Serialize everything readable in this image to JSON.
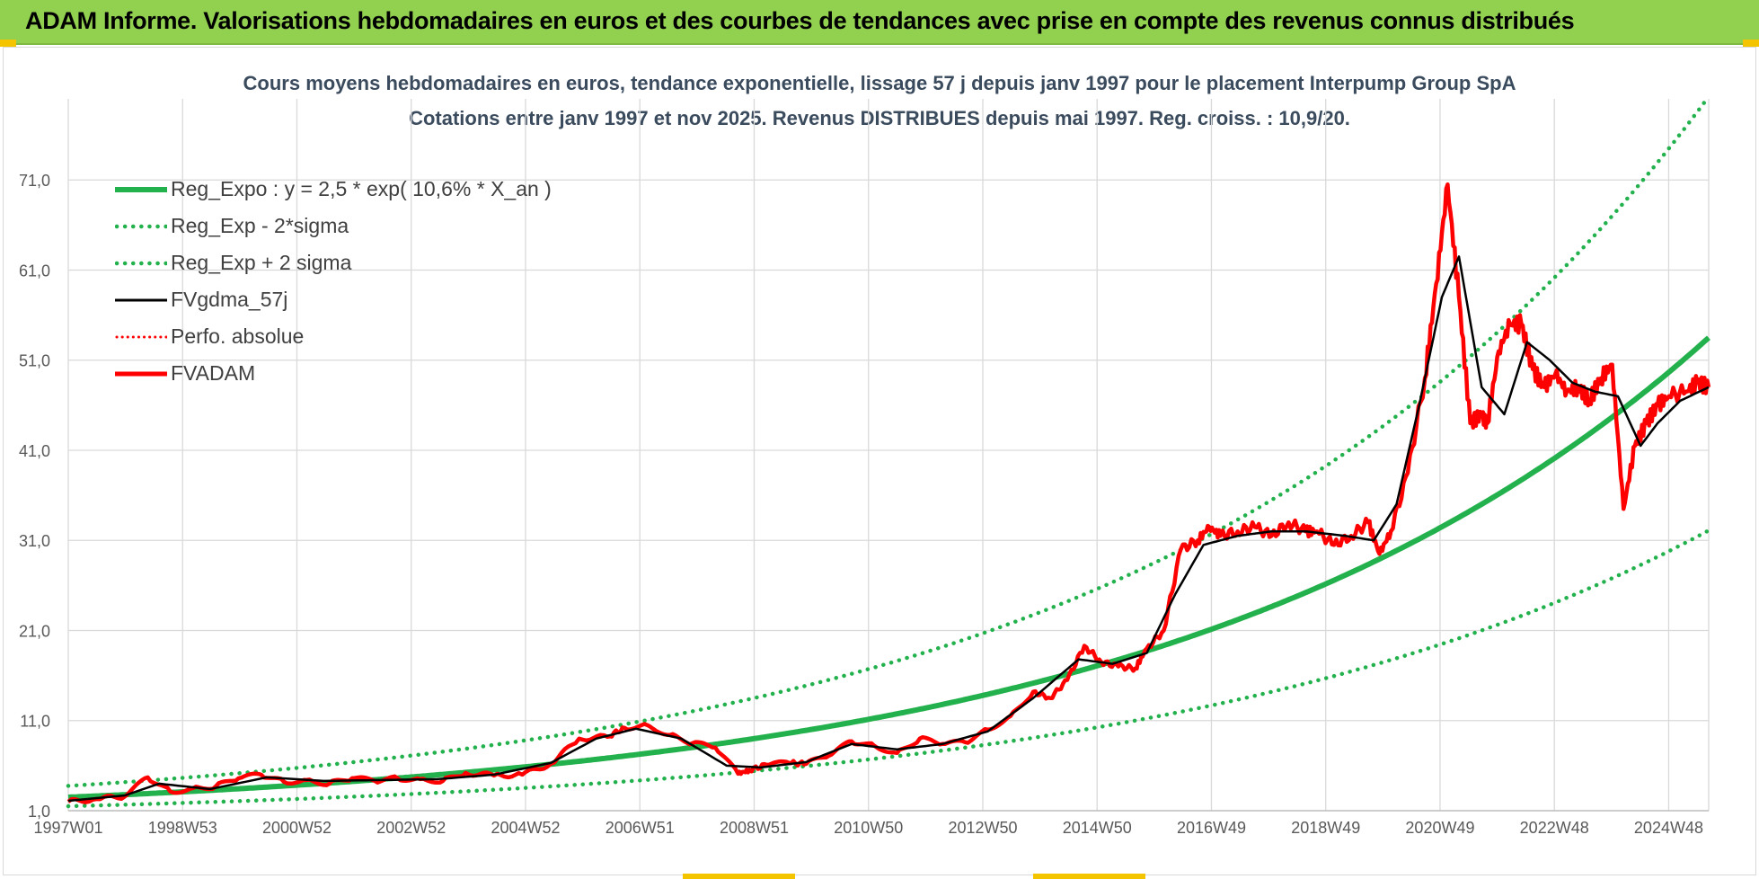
{
  "header": {
    "title": "ADAM Informe. Valorisations hebdomadaires en euros et des courbes de tendances avec prise en compte des revenus connus distribués"
  },
  "chart_data": {
    "type": "line",
    "title_line1": "Cours moyens hebdomadaires en euros, tendance exponentielle, lissage 57 j depuis janv 1997 pour le placement Interpump Group SpA",
    "title_line2": "Cotations entre janv 1997 et nov 2025. Revenus DISTRIBUES depuis mai 1997. Reg. croiss. : 10,9/20.",
    "x_tick_labels": [
      "1997W01",
      "1998W53",
      "2000W52",
      "2002W52",
      "2004W52",
      "2006W51",
      "2008W51",
      "2010W50",
      "2012W50",
      "2014W50",
      "2016W49",
      "2018W49",
      "2020W49",
      "2022W48",
      "2024W48"
    ],
    "y_tick_labels": [
      "1,0",
      "11,0",
      "21,0",
      "31,0",
      "41,0",
      "51,0",
      "61,0",
      "71,0"
    ],
    "ylim": [
      1,
      80
    ],
    "x_range_years": [
      1997.0,
      2025.9
    ],
    "legend": [
      {
        "label": "Reg_Expo : y = 2,5 * exp( 10,6% *  X_an )",
        "color": "#22b14c",
        "style": "solid-thick"
      },
      {
        "label": "Reg_Exp - 2*sigma",
        "color": "#22b14c",
        "style": "dotted"
      },
      {
        "label": "Reg_Exp + 2 sigma",
        "color": "#22b14c",
        "style": "dotted"
      },
      {
        "label": "FVgdma_57j",
        "color": "#000000",
        "style": "solid"
      },
      {
        "label": "Perfo. absolue",
        "color": "#ff0000",
        "style": "dotted"
      },
      {
        "label": "FVADAM",
        "color": "#ff0000",
        "style": "solid-thick"
      }
    ],
    "regression": {
      "base": 2.5,
      "rate": 0.106,
      "minus_2sigma_factor": 0.6,
      "plus_2sigma_factor": 1.5
    },
    "series_fvadam": {
      "x_years": [
        1997.0,
        1997.5,
        1998.0,
        1998.4,
        1998.8,
        1999.2,
        1999.6,
        2000.0,
        2000.4,
        2000.8,
        2001.2,
        2001.6,
        2002.0,
        2002.4,
        2002.8,
        2003.2,
        2003.6,
        2004.0,
        2004.5,
        2005.0,
        2005.5,
        2006.0,
        2006.5,
        2006.8,
        2007.2,
        2007.6,
        2008.0,
        2008.4,
        2008.8,
        2009.0,
        2009.3,
        2009.7,
        2010.0,
        2010.4,
        2010.8,
        2011.2,
        2011.6,
        2012.0,
        2012.4,
        2012.8,
        2013.2,
        2013.6,
        2014.0,
        2014.3,
        2014.6,
        2014.9,
        2015.2,
        2015.5,
        2015.8,
        2016.0,
        2016.3,
        2016.6,
        2016.9,
        2017.1,
        2017.3,
        2017.6,
        2017.9,
        2018.2,
        2018.5,
        2018.8,
        2019.0,
        2019.3,
        2019.6,
        2019.9,
        2020.1,
        2020.3,
        2020.6,
        2020.9,
        2021.1,
        2021.3,
        2021.5,
        2021.7,
        2021.9,
        2022.0,
        2022.2,
        2022.4,
        2022.6,
        2022.8,
        2023.0,
        2023.2,
        2023.4,
        2023.6,
        2023.8,
        2024.0,
        2024.2,
        2024.4,
        2024.6,
        2024.8,
        2025.0,
        2025.2,
        2025.5,
        2025.7,
        2025.9
      ],
      "values": [
        2.0,
        2.3,
        2.6,
        4.7,
        3.1,
        3.5,
        3.7,
        4.6,
        5.0,
        4.2,
        4.4,
        4.0,
        4.6,
        4.3,
        4.6,
        4.5,
        4.3,
        5.2,
        4.9,
        5.0,
        6.2,
        9.0,
        9.2,
        10.2,
        10.5,
        9.4,
        8.5,
        8.0,
        5.1,
        5.5,
        6.1,
        6.3,
        6.2,
        7.1,
        8.7,
        8.2,
        7.4,
        9.0,
        8.4,
        8.6,
        10.0,
        11.5,
        14.2,
        13.5,
        15.5,
        19.3,
        17.5,
        17.0,
        16.8,
        19.0,
        21.0,
        30.0,
        31.0,
        32.5,
        31.5,
        32.0,
        32.5,
        31.5,
        33.0,
        32.0,
        32.0,
        30.5,
        31.5,
        33.0,
        29.5,
        32.0,
        38.5,
        49.0,
        59.5,
        70.5,
        58.0,
        44.0,
        45.0,
        44.0,
        52.0,
        55.0,
        55.0,
        50.0,
        48.0,
        49.5,
        47.5,
        48.0,
        46.5,
        49.0,
        50.5,
        34.5,
        41.5,
        44.0,
        46.0,
        47.0,
        47.5,
        48.5,
        48.0
      ]
    },
    "series_fvgdma_57j": {
      "x_years": [
        1997.0,
        1998.0,
        1998.6,
        1999.5,
        2000.5,
        2001.5,
        2002.5,
        2003.5,
        2004.5,
        2005.5,
        2006.3,
        2007.0,
        2007.8,
        2008.6,
        2009.2,
        2010.0,
        2010.8,
        2011.6,
        2012.4,
        2013.2,
        2014.0,
        2014.8,
        2015.4,
        2016.0,
        2016.5,
        2017.0,
        2017.6,
        2018.2,
        2018.8,
        2019.5,
        2020.0,
        2020.4,
        2020.8,
        2021.2,
        2021.5,
        2021.9,
        2022.3,
        2022.7,
        2023.1,
        2023.5,
        2023.9,
        2024.3,
        2024.7,
        2025.0,
        2025.4,
        2025.9
      ],
      "values": [
        2.1,
        2.7,
        4.0,
        3.4,
        4.7,
        4.3,
        4.4,
        4.5,
        5.0,
        6.3,
        9.0,
        10.1,
        9.0,
        6.0,
        5.8,
        6.4,
        8.4,
        7.8,
        8.4,
        9.8,
        13.5,
        17.8,
        17.3,
        18.5,
        25.0,
        30.5,
        31.5,
        32.0,
        32.0,
        31.5,
        31.0,
        35.0,
        46.0,
        58.0,
        62.5,
        48.0,
        45.0,
        53.0,
        51.0,
        48.5,
        47.5,
        47.0,
        41.5,
        44.0,
        46.5,
        48.0
      ]
    }
  }
}
